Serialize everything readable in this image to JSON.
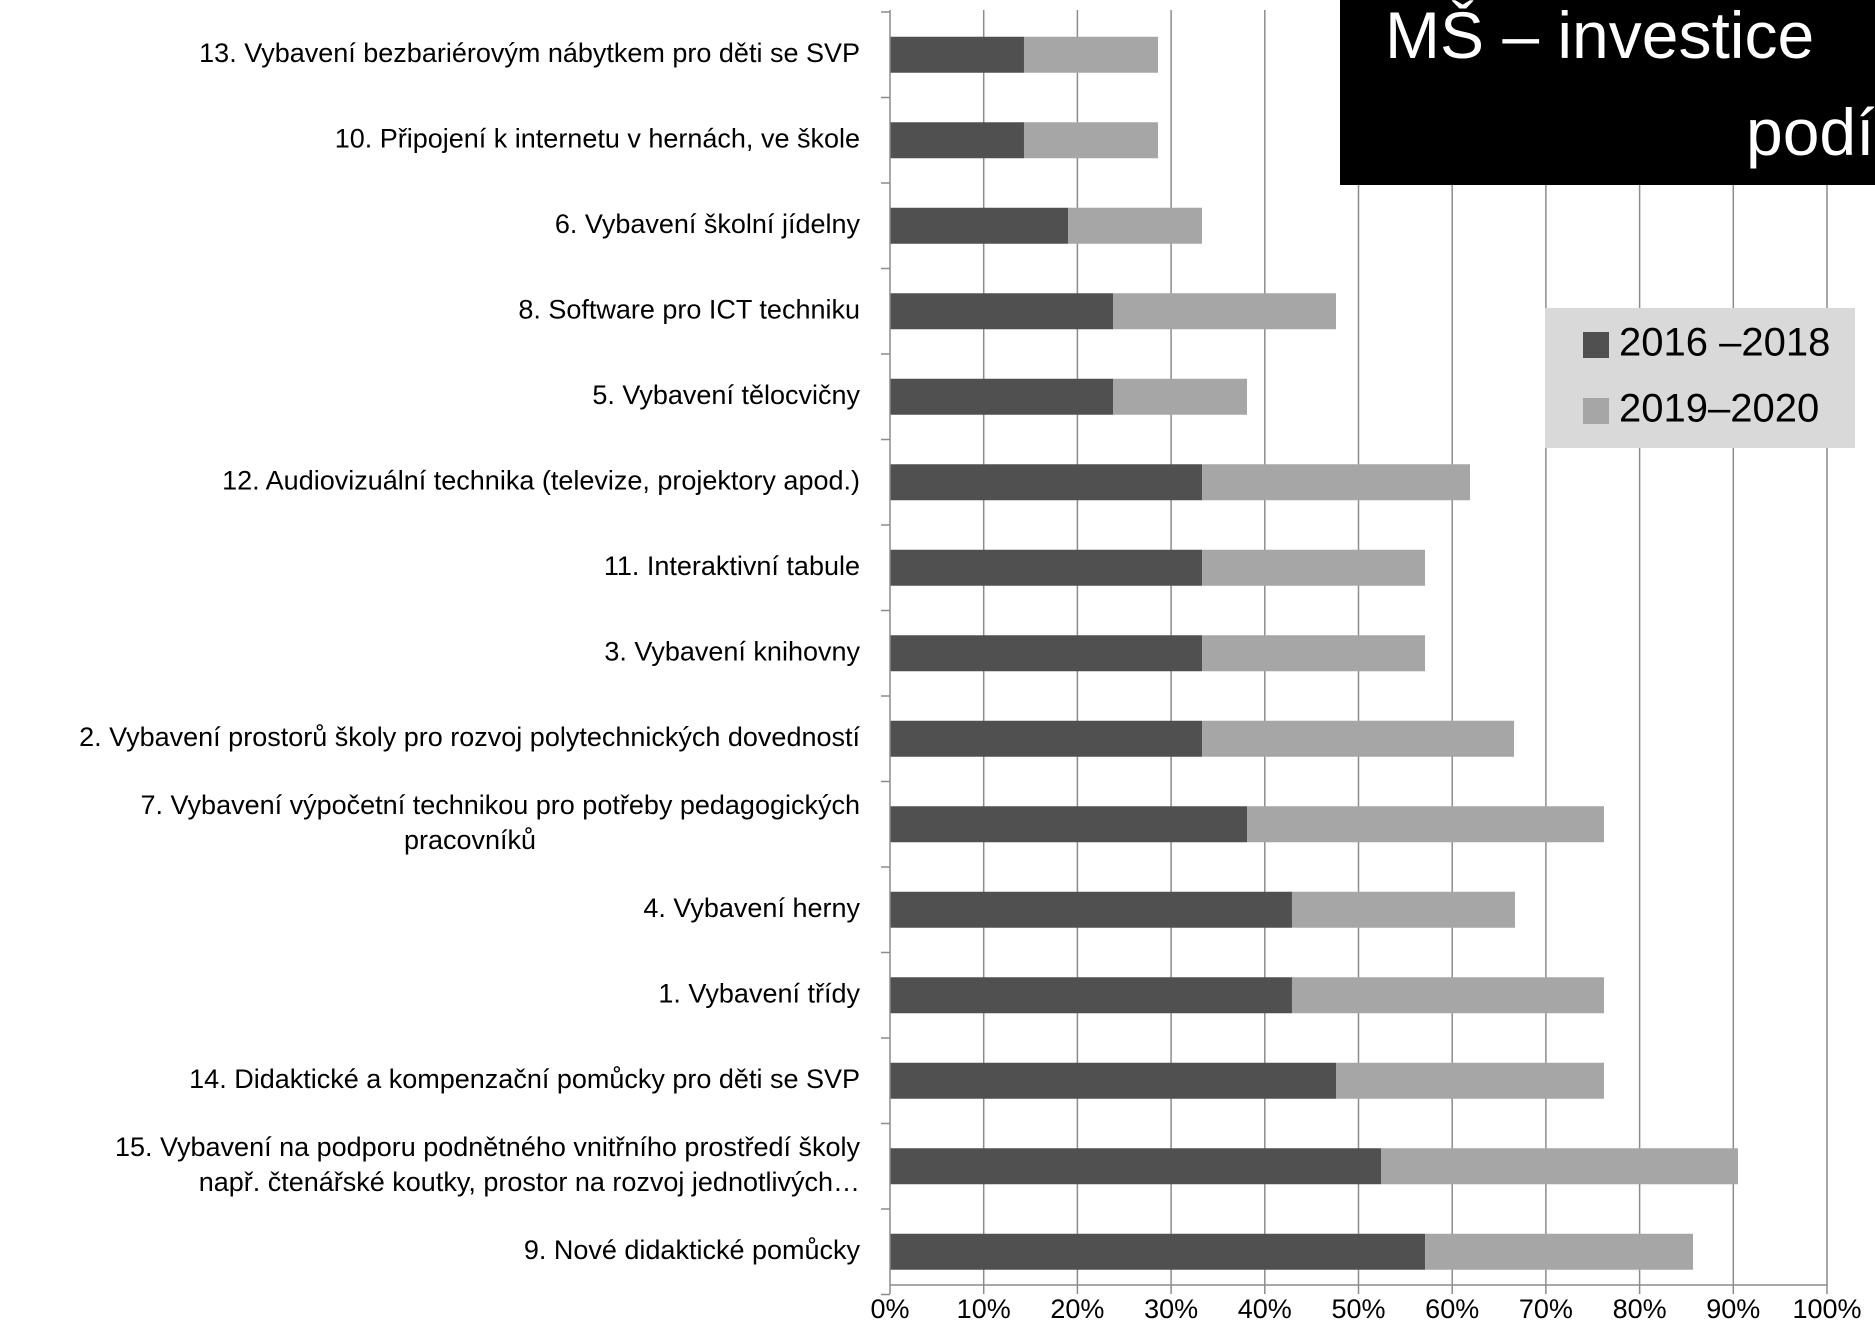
{
  "chart_data": {
    "type": "bar",
    "orientation": "horizontal",
    "stacked": true,
    "title": "MŠ – investice\npodíl",
    "xlabel": "",
    "ylabel": "",
    "xlim": [
      0,
      100
    ],
    "x_ticks": [
      "0%",
      "10%",
      "20%",
      "30%",
      "40%",
      "50%",
      "60%",
      "70%",
      "80%",
      "90%",
      "100%"
    ],
    "grid": "vertical",
    "legend_position": "right",
    "categories": [
      "13. Vybavení bezbariérovým nábytkem pro děti se SVP",
      "10. Připojení k internetu v hernách, ve škole",
      "6. Vybavení školní jídelny",
      "8. Software pro ICT techniku",
      "5. Vybavení tělocvičny",
      "12. Audiovizuální technika (televize, projektory apod.)",
      "11. Interaktivní tabule",
      "3. Vybavení knihovny",
      "2. Vybavení prostorů školy pro rozvoj polytechnických dovedností",
      "7. Vybavení výpočetní technikou pro potřeby pedagogických\npracovníků",
      "4. Vybavení herny",
      "1. Vybavení třídy",
      "14. Didaktické a kompenzační pomůcky pro děti se SVP",
      "15. Vybavení na podporu podnětného vnitřního prostředí školy\nnapř. čtenářské koutky, prostor na rozvoj jednotlivých…",
      "9. Nové didaktické pomůcky"
    ],
    "series": [
      {
        "name": "2016 –2018",
        "color": "#505050",
        "values": [
          14.3,
          14.3,
          19.0,
          23.8,
          23.8,
          33.3,
          33.3,
          33.3,
          33.3,
          38.1,
          42.9,
          42.9,
          47.6,
          52.4,
          57.1
        ]
      },
      {
        "name": "2019–2020",
        "color": "#a6a6a6",
        "values": [
          14.3,
          14.3,
          14.3,
          23.8,
          14.3,
          28.6,
          23.8,
          23.8,
          33.3,
          38.1,
          23.8,
          33.3,
          28.6,
          38.1,
          28.6
        ]
      }
    ]
  }
}
